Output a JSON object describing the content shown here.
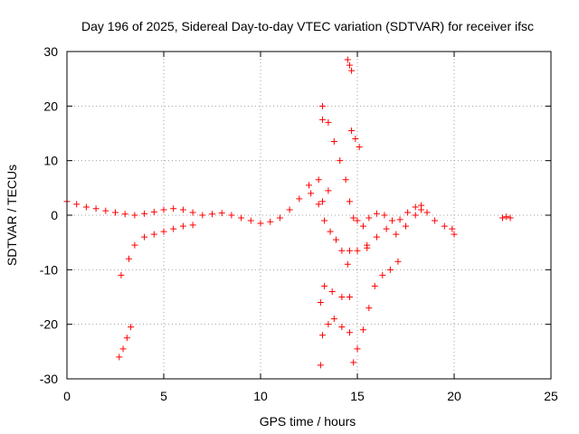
{
  "chart_data": {
    "type": "scatter",
    "title": "Day 196 of 2025, Sidereal Day-to-day VTEC variation (SDTVAR) for receiver ifsc",
    "xlabel": "GPS time / hours",
    "ylabel": "SDTVAR / TECUs",
    "xlim": [
      0,
      25
    ],
    "ylim": [
      -30,
      30
    ],
    "xticks": [
      "0",
      "5",
      "10",
      "15",
      "20",
      "25"
    ],
    "yticks": [
      "-30",
      "-20",
      "-10",
      "0",
      "10",
      "20",
      "30"
    ],
    "grid": true,
    "legend": "none",
    "marker": "+",
    "color": "#ff0000",
    "series": [
      {
        "values": [
          [
            0.0,
            2.5
          ],
          [
            0.5,
            2.0
          ],
          [
            1.0,
            1.5
          ],
          [
            1.5,
            1.2
          ],
          [
            2.0,
            0.8
          ],
          [
            2.5,
            0.5
          ],
          [
            3.0,
            0.2
          ],
          [
            3.5,
            0.0
          ],
          [
            4.0,
            0.3
          ],
          [
            4.5,
            0.6
          ],
          [
            5.0,
            1.0
          ],
          [
            5.5,
            1.2
          ],
          [
            6.0,
            1.0
          ],
          [
            6.5,
            0.5
          ],
          [
            7.0,
            0.0
          ],
          [
            7.5,
            0.2
          ],
          [
            8.0,
            0.4
          ],
          [
            8.5,
            0.0
          ],
          [
            9.0,
            -0.5
          ],
          [
            9.5,
            -1.0
          ],
          [
            10.0,
            -1.5
          ],
          [
            10.5,
            -1.2
          ],
          [
            11.0,
            -0.5
          ],
          [
            11.5,
            1.0
          ],
          [
            12.0,
            3.0
          ],
          [
            12.5,
            5.5
          ],
          [
            13.0,
            6.5
          ],
          [
            13.5,
            4.5
          ]
        ]
      },
      {
        "values": [
          [
            2.8,
            -11.0
          ],
          [
            3.2,
            -8.0
          ],
          [
            3.5,
            -5.5
          ],
          [
            4.0,
            -4.0
          ],
          [
            4.5,
            -3.5
          ],
          [
            5.0,
            -3.0
          ],
          [
            5.5,
            -2.5
          ],
          [
            6.0,
            -2.0
          ],
          [
            6.5,
            -1.8
          ]
        ]
      },
      {
        "values": [
          [
            2.7,
            -26.0
          ],
          [
            2.9,
            -24.5
          ],
          [
            3.1,
            -22.5
          ],
          [
            3.3,
            -20.5
          ]
        ]
      },
      {
        "values": [
          [
            13.2,
            20.0
          ],
          [
            13.5,
            17.0
          ],
          [
            13.8,
            13.5
          ],
          [
            14.1,
            10.0
          ],
          [
            14.4,
            6.5
          ],
          [
            14.6,
            2.5
          ],
          [
            14.8,
            -0.5
          ],
          [
            15.0,
            -1.0
          ],
          [
            15.3,
            -2.0
          ],
          [
            15.6,
            -0.5
          ],
          [
            16.0,
            0.3
          ],
          [
            16.4,
            0.0
          ],
          [
            16.8,
            -1.0
          ],
          [
            17.2,
            -0.8
          ],
          [
            17.6,
            0.5
          ],
          [
            18.0,
            1.5
          ],
          [
            18.3,
            1.8
          ],
          [
            18.6,
            0.5
          ],
          [
            19.0,
            -1.0
          ],
          [
            19.5,
            -2.0
          ],
          [
            19.9,
            -2.5
          ]
        ]
      },
      {
        "values": [
          [
            12.6,
            4.0
          ],
          [
            13.0,
            2.0
          ],
          [
            13.3,
            -1.0
          ],
          [
            13.6,
            -3.0
          ],
          [
            13.9,
            -4.5
          ],
          [
            14.2,
            -6.5
          ],
          [
            14.5,
            -9.0
          ]
        ]
      },
      {
        "values": [
          [
            14.5,
            28.5
          ],
          [
            14.6,
            27.5
          ],
          [
            14.7,
            26.5
          ]
        ]
      },
      {
        "values": [
          [
            14.7,
            15.5
          ],
          [
            14.9,
            14.0
          ],
          [
            15.1,
            12.5
          ]
        ]
      },
      {
        "values": [
          [
            14.6,
            -6.5
          ],
          [
            15.0,
            -6.5
          ],
          [
            15.5,
            -5.5
          ],
          [
            16.0,
            -4.0
          ],
          [
            16.5,
            -2.5
          ],
          [
            17.0,
            -3.5
          ],
          [
            17.5,
            -2.0
          ],
          [
            18.0,
            0.0
          ],
          [
            18.3,
            1.0
          ]
        ]
      },
      {
        "values": [
          [
            13.3,
            -13.0
          ],
          [
            13.7,
            -14.0
          ],
          [
            14.2,
            -15.0
          ],
          [
            14.6,
            -15.0
          ]
        ]
      },
      {
        "values": [
          [
            13.2,
            -22.0
          ],
          [
            13.5,
            -20.0
          ],
          [
            13.8,
            -19.0
          ],
          [
            14.2,
            -20.5
          ],
          [
            14.6,
            -21.5
          ]
        ]
      },
      {
        "values": [
          [
            14.8,
            -27.0
          ],
          [
            15.0,
            -24.5
          ],
          [
            15.3,
            -21.0
          ],
          [
            15.6,
            -17.0
          ],
          [
            15.9,
            -13.0
          ],
          [
            16.3,
            -11.0
          ],
          [
            16.7,
            -10.0
          ],
          [
            17.1,
            -8.5
          ]
        ]
      },
      {
        "values": [
          [
            22.5,
            -0.5
          ],
          [
            22.7,
            -0.3
          ],
          [
            22.9,
            -0.5
          ]
        ]
      },
      {
        "values": [
          [
            13.2,
            17.5
          ],
          [
            13.2,
            2.5
          ],
          [
            13.1,
            -16.0
          ],
          [
            13.1,
            -27.5
          ],
          [
            20.0,
            -3.5
          ],
          [
            15.5,
            -6.0
          ]
        ]
      }
    ]
  }
}
